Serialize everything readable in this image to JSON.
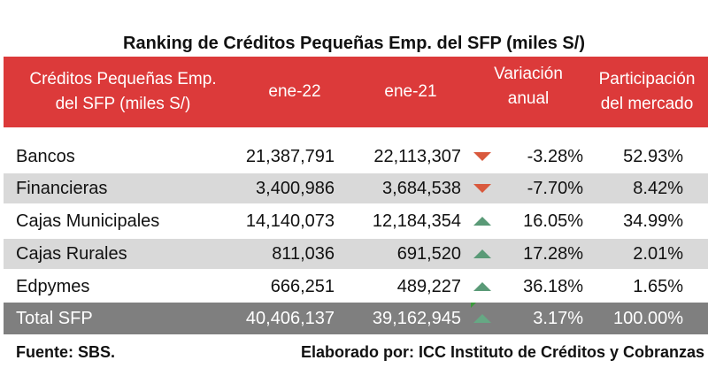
{
  "title": "Ranking de Créditos Pequeñas Emp. del SFP (miles S/)",
  "header": {
    "category_line1": "Créditos Pequeñas Emp.",
    "category_line2": "del SFP (miles S/)",
    "col1": "ene-22",
    "col2": "ene-21",
    "col3_line1": "Variación",
    "col3_line2": "anual",
    "col4_line1": "Participación",
    "col4_line2": "del mercado"
  },
  "rows": [
    {
      "name": "Bancos",
      "ene22": "21,387,791",
      "ene21": "22,113,307",
      "trend": "down",
      "variacion": "-3.28%",
      "participacion": "52.93%"
    },
    {
      "name": "Financieras",
      "ene22": "3,400,986",
      "ene21": "3,684,538",
      "trend": "down",
      "variacion": "-7.70%",
      "participacion": "8.42%"
    },
    {
      "name": "Cajas Municipales",
      "ene22": "14,140,073",
      "ene21": "12,184,354",
      "trend": "up",
      "variacion": "16.05%",
      "participacion": "34.99%"
    },
    {
      "name": "Cajas Rurales",
      "ene22": "811,036",
      "ene21": "691,520",
      "trend": "up",
      "variacion": "17.28%",
      "participacion": "2.01%"
    },
    {
      "name": "Edpymes",
      "ene22": "666,251",
      "ene21": "489,227",
      "trend": "up",
      "variacion": "36.18%",
      "participacion": "1.65%"
    }
  ],
  "total": {
    "name": "Total SFP",
    "ene22": "40,406,137",
    "ene21": "39,162,945",
    "trend": "up",
    "variacion": "3.17%",
    "participacion": "100.00%"
  },
  "footer": {
    "source": "Fuente: SBS.",
    "credit": "Elaborado por: ICC Instituto de Créditos y Cobranzas"
  },
  "colors": {
    "header_bg": "#dc3a3a",
    "alt_row_bg": "#d9d9d9",
    "total_bg": "#7f7f7f",
    "down_arrow": "#d9593d",
    "up_arrow": "#5a9a77"
  },
  "icons": {
    "down": "down-triangle-icon",
    "up": "up-triangle-icon"
  }
}
